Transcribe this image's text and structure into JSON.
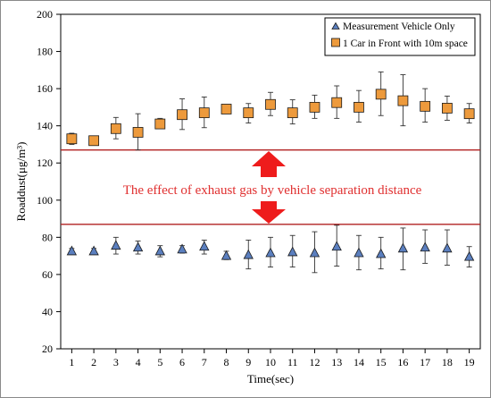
{
  "chart_data": {
    "type": "scatter",
    "title": "",
    "xlabel": "Time(sec)",
    "ylabel": "Roaddust(μg/m³)",
    "x": [
      1,
      2,
      3,
      4,
      5,
      6,
      7,
      8,
      9,
      10,
      11,
      12,
      13,
      14,
      15,
      16,
      17,
      18,
      19
    ],
    "xlim": [
      0.5,
      19.5
    ],
    "ylim": [
      20,
      200
    ],
    "yticks": [
      20,
      40,
      60,
      80,
      100,
      120,
      140,
      160,
      180,
      200
    ],
    "grid": false,
    "legend_position": "top-right",
    "series": [
      {
        "name": "Measurement Vehicle Only",
        "marker": "triangle",
        "color": "#5b7fbf",
        "values": [
          72.5,
          72.5,
          75.5,
          74.5,
          72.5,
          73.5,
          75,
          70,
          70.5,
          71.5,
          72,
          71.5,
          75,
          71.5,
          71,
          74,
          74.5,
          74,
          69.5
        ],
        "err_low": [
          71,
          71,
          71,
          71,
          69.5,
          71.5,
          71,
          68,
          63,
          64,
          64,
          61,
          64.5,
          62.5,
          63,
          62.5,
          66,
          65,
          64
        ],
        "err_high": [
          74,
          74,
          80,
          78,
          75.5,
          75.5,
          78.5,
          72.5,
          78.5,
          80,
          81,
          83,
          86.5,
          81,
          80,
          85,
          84,
          84,
          75
        ]
      },
      {
        "name": "1 Car in Front with 10m space",
        "marker": "square",
        "color": "#ed9a3c",
        "values": [
          133,
          132,
          138.5,
          136.5,
          141,
          146,
          147,
          149,
          147,
          151.5,
          147,
          150,
          152.5,
          150,
          157,
          153.5,
          150.5,
          149.5,
          146.5
        ],
        "err_low": [
          130,
          131,
          133,
          127,
          139,
          138,
          139,
          147.5,
          141.5,
          145.5,
          141,
          144,
          144,
          142,
          145.5,
          140,
          142,
          143,
          141.5
        ],
        "err_high": [
          136,
          133.5,
          144.5,
          146.5,
          144,
          154.5,
          155.5,
          150.5,
          152,
          158,
          154,
          156.5,
          161.5,
          159,
          169,
          167.5,
          160,
          156,
          152
        ]
      }
    ],
    "reference_lines": [
      {
        "y": 127,
        "color": "#b22222"
      },
      {
        "y": 87,
        "color": "#b22222"
      }
    ],
    "annotation": {
      "text": "The effect of exhaust gas by vehicle separation distance",
      "color": "#e03030",
      "arrow_color": "#ee1c1c"
    }
  }
}
